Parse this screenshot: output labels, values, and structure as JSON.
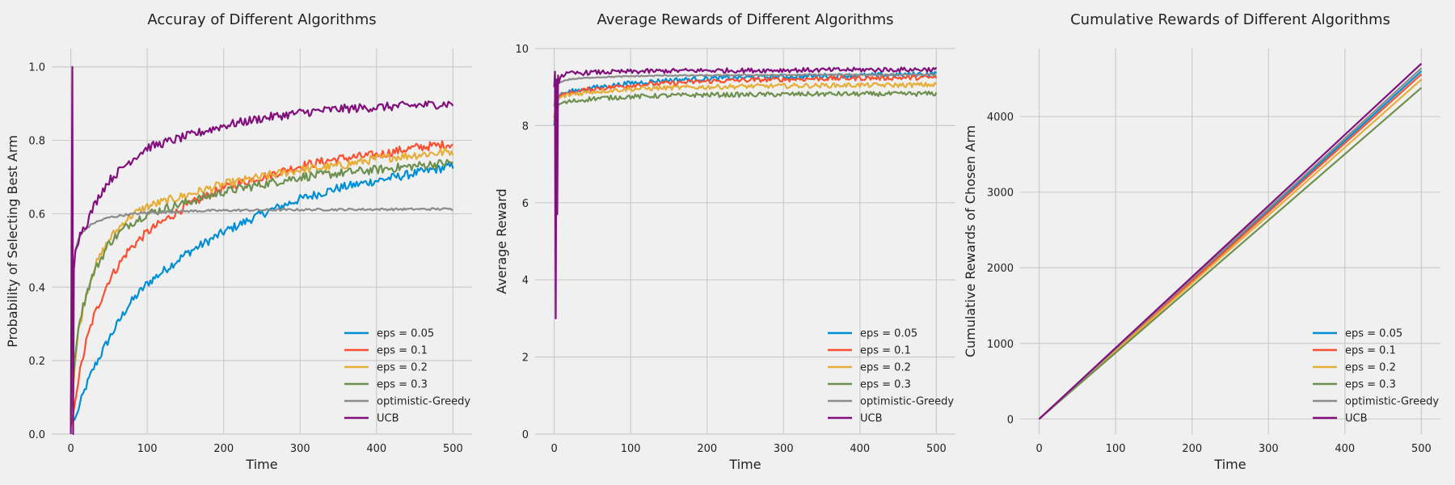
{
  "chart_data": [
    {
      "type": "line",
      "title": "Accuray of Different Algorithms",
      "xlabel": "Time",
      "ylabel": "Probability of Selecting Best Arm",
      "xlim": [
        -25,
        525
      ],
      "ylim": [
        0.0,
        1.05
      ],
      "xticks": [
        0,
        100,
        200,
        300,
        400,
        500
      ],
      "yticks": [
        0.0,
        0.2,
        0.4,
        0.6,
        0.8,
        1.0
      ],
      "ytick_labels": [
        "0.0",
        "0.2",
        "0.4",
        "0.6",
        "0.8",
        "1.0"
      ],
      "grid": true,
      "legend": "lower-right",
      "series": [
        {
          "name": "eps = 0.05",
          "color": "#008fd5",
          "x": [
            0,
            5,
            10,
            20,
            30,
            50,
            75,
            100,
            150,
            200,
            250,
            300,
            350,
            400,
            450,
            500
          ],
          "values": [
            0.03,
            0.04,
            0.07,
            0.13,
            0.18,
            0.26,
            0.35,
            0.41,
            0.49,
            0.55,
            0.6,
            0.64,
            0.67,
            0.69,
            0.71,
            0.73
          ]
        },
        {
          "name": "eps = 0.1",
          "color": "#fc4f30",
          "x": [
            0,
            5,
            10,
            20,
            30,
            50,
            75,
            100,
            150,
            200,
            250,
            300,
            350,
            400,
            450,
            500
          ],
          "values": [
            0.02,
            0.08,
            0.15,
            0.25,
            0.32,
            0.42,
            0.5,
            0.55,
            0.62,
            0.67,
            0.7,
            0.73,
            0.75,
            0.76,
            0.78,
            0.79
          ]
        },
        {
          "name": "eps = 0.2",
          "color": "#e5ae38",
          "x": [
            0,
            5,
            10,
            20,
            30,
            50,
            75,
            100,
            150,
            200,
            250,
            300,
            350,
            400,
            450,
            500
          ],
          "values": [
            0.04,
            0.18,
            0.28,
            0.38,
            0.45,
            0.53,
            0.59,
            0.62,
            0.65,
            0.68,
            0.7,
            0.72,
            0.73,
            0.75,
            0.76,
            0.77
          ]
        },
        {
          "name": "eps = 0.3",
          "color": "#6d904f",
          "x": [
            0,
            5,
            10,
            20,
            30,
            50,
            75,
            100,
            150,
            200,
            250,
            300,
            350,
            400,
            450,
            500
          ],
          "values": [
            0.06,
            0.2,
            0.3,
            0.38,
            0.44,
            0.52,
            0.57,
            0.6,
            0.63,
            0.66,
            0.68,
            0.7,
            0.71,
            0.72,
            0.73,
            0.74
          ]
        },
        {
          "name": "optimistic-Greedy",
          "color": "#8b8b8b",
          "x": [
            0,
            2,
            4,
            6,
            10,
            15,
            20,
            30,
            50,
            75,
            100,
            150,
            200,
            300,
            400,
            500
          ],
          "values": [
            0.05,
            0.35,
            0.45,
            0.5,
            0.53,
            0.55,
            0.56,
            0.575,
            0.59,
            0.598,
            0.603,
            0.607,
            0.609,
            0.611,
            0.612,
            0.613
          ]
        },
        {
          "name": "UCB",
          "color": "#810f7c",
          "x": [
            0,
            2,
            3,
            4,
            6,
            10,
            15,
            20,
            30,
            40,
            50,
            75,
            100,
            150,
            200,
            250,
            300,
            350,
            400,
            450,
            500
          ],
          "values": [
            0.0,
            1.0,
            0.0,
            0.45,
            0.5,
            0.53,
            0.56,
            0.57,
            0.62,
            0.66,
            0.69,
            0.74,
            0.78,
            0.81,
            0.84,
            0.86,
            0.875,
            0.885,
            0.89,
            0.895,
            0.9
          ]
        }
      ]
    },
    {
      "type": "line",
      "title": "Average Rewards of Different Algorithms",
      "xlabel": "Time",
      "ylabel": "Average Reward",
      "xlim": [
        -25,
        525
      ],
      "ylim": [
        0,
        10
      ],
      "xticks": [
        0,
        100,
        200,
        300,
        400,
        500
      ],
      "yticks": [
        0,
        2,
        4,
        6,
        8,
        10
      ],
      "ytick_labels": [
        "0",
        "2",
        "4",
        "6",
        "8",
        "10"
      ],
      "grid": true,
      "legend": "lower-right",
      "series": [
        {
          "name": "eps = 0.05",
          "color": "#008fd5",
          "x": [
            0,
            3,
            6,
            10,
            20,
            50,
            100,
            150,
            200,
            250,
            300,
            350,
            400,
            450,
            500
          ],
          "values": [
            8.0,
            8.6,
            8.75,
            8.8,
            8.88,
            8.98,
            9.1,
            9.18,
            9.22,
            9.25,
            9.27,
            9.29,
            9.3,
            9.32,
            9.35
          ]
        },
        {
          "name": "eps = 0.1",
          "color": "#fc4f30",
          "x": [
            0,
            3,
            6,
            10,
            20,
            50,
            100,
            150,
            200,
            250,
            300,
            350,
            400,
            450,
            500
          ],
          "values": [
            8.2,
            8.65,
            8.75,
            8.78,
            8.85,
            8.95,
            9.05,
            9.1,
            9.15,
            9.18,
            9.2,
            9.22,
            9.23,
            9.24,
            9.25
          ]
        },
        {
          "name": "eps = 0.2",
          "color": "#e5ae38",
          "x": [
            0,
            3,
            6,
            10,
            20,
            50,
            100,
            150,
            200,
            250,
            300,
            350,
            400,
            450,
            500
          ],
          "values": [
            8.3,
            8.6,
            8.7,
            8.75,
            8.8,
            8.88,
            8.95,
            8.98,
            9.0,
            9.02,
            9.03,
            9.04,
            9.05,
            9.05,
            9.06
          ]
        },
        {
          "name": "eps = 0.3",
          "color": "#6d904f",
          "x": [
            0,
            3,
            6,
            10,
            20,
            50,
            100,
            150,
            200,
            250,
            300,
            350,
            400,
            450,
            500
          ],
          "values": [
            8.1,
            8.45,
            8.55,
            8.58,
            8.62,
            8.7,
            8.75,
            8.78,
            8.8,
            8.8,
            8.81,
            8.82,
            8.82,
            8.82,
            8.83
          ]
        },
        {
          "name": "optimistic-Greedy",
          "color": "#8b8b8b",
          "x": [
            0,
            3,
            6,
            10,
            20,
            50,
            100,
            150,
            200,
            250,
            300,
            350,
            400,
            450,
            500
          ],
          "values": [
            8.5,
            9.0,
            9.1,
            9.15,
            9.2,
            9.25,
            9.28,
            9.3,
            9.3,
            9.31,
            9.31,
            9.32,
            9.32,
            9.32,
            9.32
          ]
        },
        {
          "name": "UCB",
          "color": "#810f7c",
          "x": [
            0,
            1,
            2,
            3,
            4,
            5,
            6,
            8,
            10,
            20,
            50,
            100,
            150,
            200,
            250,
            300,
            350,
            400,
            450,
            500
          ],
          "values": [
            9.0,
            9.4,
            3.0,
            9.2,
            5.7,
            9.3,
            9.1,
            9.25,
            9.3,
            9.35,
            9.38,
            9.4,
            9.42,
            9.43,
            9.43,
            9.44,
            9.44,
            9.45,
            9.45,
            9.46
          ]
        }
      ]
    },
    {
      "type": "line",
      "title": "Cumulative Rewards of Different Algorithms",
      "xlabel": "Time",
      "ylabel": "Cumulative Rewards of Chosen Arm",
      "xlim": [
        -25,
        525
      ],
      "ylim": [
        -200,
        4900
      ],
      "xticks": [
        0,
        100,
        200,
        300,
        400,
        500
      ],
      "yticks": [
        0,
        1000,
        2000,
        3000,
        4000
      ],
      "ytick_labels": [
        "0",
        "1000",
        "2000",
        "3000",
        "4000"
      ],
      "grid": true,
      "legend": "lower-right",
      "series": [
        {
          "name": "eps = 0.05",
          "color": "#008fd5",
          "x": [
            0,
            500
          ],
          "values": [
            0,
            4600
          ]
        },
        {
          "name": "eps = 0.1",
          "color": "#fc4f30",
          "x": [
            0,
            500
          ],
          "values": [
            0,
            4560
          ]
        },
        {
          "name": "eps = 0.2",
          "color": "#e5ae38",
          "x": [
            0,
            500
          ],
          "values": [
            0,
            4490
          ]
        },
        {
          "name": "eps = 0.3",
          "color": "#6d904f",
          "x": [
            0,
            500
          ],
          "values": [
            0,
            4380
          ]
        },
        {
          "name": "optimistic-Greedy",
          "color": "#8b8b8b",
          "x": [
            0,
            500
          ],
          "values": [
            0,
            4640
          ]
        },
        {
          "name": "UCB",
          "color": "#810f7c",
          "x": [
            0,
            500
          ],
          "values": [
            0,
            4700
          ]
        }
      ]
    }
  ]
}
